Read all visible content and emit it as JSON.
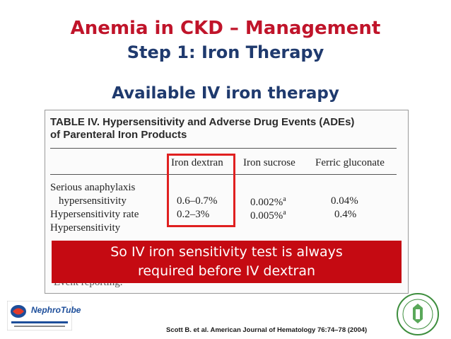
{
  "slide": {
    "title": "Anemia in CKD – Management",
    "subtitle": "Step 1: Iron Therapy",
    "section_heading": "Available IV iron therapy"
  },
  "table": {
    "caption_line1": "TABLE IV.  Hypersensitivity and Adverse Drug Events (ADEs)",
    "caption_line2": "of Parenteral Iron Products",
    "columns": [
      "Iron dextran",
      "Iron sucrose",
      "Ferric gluconate"
    ],
    "rows": [
      {
        "label_line1": "Serious anaphylaxis",
        "label_line2": "hypersensitivity",
        "values": [
          "0.6–0.7%",
          "0.002%",
          "0.04%"
        ],
        "sup": [
          "",
          "a",
          ""
        ]
      },
      {
        "label": "Hypersensitivity rate",
        "values": [
          "0.2–3%",
          "0.005%",
          "0.4%"
        ],
        "sup": [
          "",
          "a",
          ""
        ]
      },
      {
        "label": "Hypersensitivity"
      }
    ],
    "footer_partial": "Event reporting."
  },
  "banner": {
    "line1": "So IV iron sensitivity test is always",
    "line2": "required before IV dextran"
  },
  "footer": {
    "logo_text": "NephroTube",
    "citation": "Scott B. et al. American Journal of Hematology 76:74–78 (2004)"
  },
  "colors": {
    "title_red": "#c0142a",
    "heading_blue": "#1f3a6e",
    "banner_red": "#c50a12",
    "highlight_red": "#e02020"
  }
}
